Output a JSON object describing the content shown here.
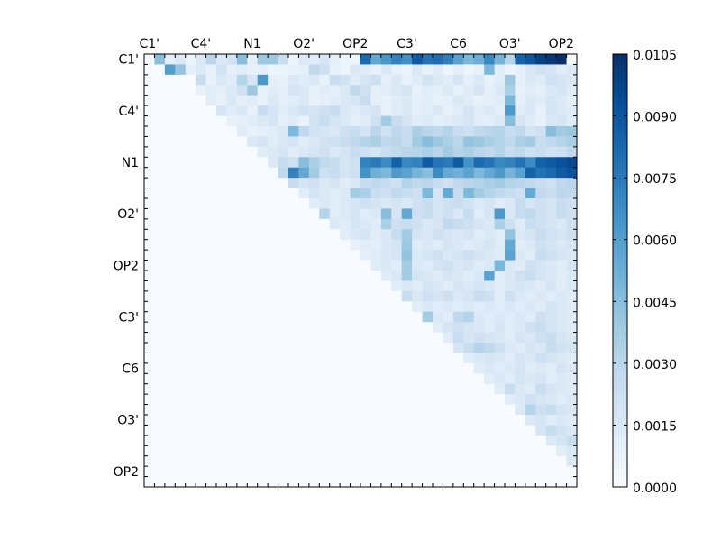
{
  "chart_data": {
    "type": "heatmap",
    "title": "",
    "xlabel": "",
    "ylabel": "",
    "x_tick_labels": [
      "C1'",
      "C4'",
      "N1",
      "O2'",
      "OP2",
      "C3'",
      "C6",
      "O3'",
      "OP2"
    ],
    "y_tick_labels": [
      "C1'",
      "C4'",
      "N1",
      "O2'",
      "OP2",
      "C3'",
      "C6",
      "O3'",
      "OP2"
    ],
    "x_tick_label_position": "top",
    "grid_size": 42,
    "lower_triangle_value": 0,
    "colorscale": "Blues",
    "colorbar": {
      "min": 0,
      "max": 0.0105,
      "tick_labels": [
        "0.0000",
        "0.0015",
        "0.0030",
        "0.0045",
        "0.0060",
        "0.0075",
        "0.0090",
        "0.0105"
      ]
    },
    "rows": [
      {
        "start": 1,
        "values": [
          0.0045,
          0.001,
          0.0015,
          0.0005,
          0.0015,
          0.003,
          0.0015,
          0.002,
          0.0045,
          0.001,
          0.004,
          0.004,
          0.0025,
          0.0005,
          0.0015,
          0.0012,
          0.0018,
          0.001,
          0.0006,
          0.0005,
          0.0082,
          0.0055,
          0.0063,
          0.0072,
          0.0066,
          0.0088,
          0.0078,
          0.008,
          0.0073,
          0.0058,
          0.0048,
          0.0052,
          0.007,
          0.005,
          0.0032,
          0.0084,
          0.0089,
          0.0098,
          0.0102,
          0.0105
        ]
      },
      {
        "start": 2,
        "values": [
          0.006,
          0.0042,
          0.001,
          0.0015,
          0.0008,
          0.002,
          0.001,
          0.0012,
          0.0008,
          0.001,
          0.0005,
          0.0005,
          0.0008,
          0.001,
          0.0028,
          0.0022,
          0.0008,
          0.0005,
          0.0015,
          0.0012,
          0.0008,
          0.0015,
          0.0008,
          0.0006,
          0.0015,
          0.0008,
          0.0012,
          0.0005,
          0.001,
          0.0005,
          0.0008,
          0.0048,
          0.0012,
          0.0005,
          0.001,
          0.0015,
          0.002,
          0.0018,
          0.0012,
          0.0015
        ]
      },
      {
        "start": 5,
        "values": [
          0.0025,
          0.0008,
          0.0015,
          0.0012,
          0.0032,
          0.0018,
          0.0062,
          0.001,
          0.0008,
          0.0015,
          0.0012,
          0.0015,
          0.0008,
          0.0025,
          0.002,
          0.0012,
          0.0018,
          0.0022,
          0.001,
          0.0015,
          0.0008,
          0.0012,
          0.002,
          0.0015,
          0.0012,
          0.0018,
          0.001,
          0.0015,
          0.0008,
          0.0012,
          0.004,
          0.001,
          0.0015,
          0.0012,
          0.0022,
          0.0018,
          0.0015,
          0.001
        ]
      },
      {
        "start": 5,
        "values": [
          0.0008,
          0.0012,
          0.001,
          0.0015,
          0.0022,
          0.004,
          0.0008,
          0.0012,
          0.001,
          0.0018,
          0.0015,
          0.0008,
          0.0012,
          0.001,
          0.0015,
          0.0028,
          0.0022,
          0.001,
          0.0012,
          0.0015,
          0.0018,
          0.0008,
          0.0012,
          0.001,
          0.0015,
          0.0008,
          0.0012,
          0.0018,
          0.001,
          0.0015,
          0.0035,
          0.0008,
          0.0012,
          0.001,
          0.0015,
          0.0018,
          0.0012
        ]
      },
      {
        "start": 6,
        "values": [
          0.0012,
          0.0008,
          0.0015,
          0.001,
          0.0012,
          0.0008,
          0.0015,
          0.001,
          0.0012,
          0.0015,
          0.0008,
          0.001,
          0.0012,
          0.0015,
          0.0018,
          0.0025,
          0.001,
          0.0008,
          0.0012,
          0.0015,
          0.001,
          0.0012,
          0.0008,
          0.001,
          0.0015,
          0.0012,
          0.0008,
          0.001,
          0.0012,
          0.0048,
          0.001,
          0.0015,
          0.0012,
          0.0018,
          0.0015,
          0.001
        ]
      },
      {
        "start": 7,
        "values": [
          0.0018,
          0.0012,
          0.0015,
          0.0008,
          0.0025,
          0.0018,
          0.0012,
          0.0015,
          0.002,
          0.0018,
          0.0022,
          0.0025,
          0.0015,
          0.0012,
          0.0015,
          0.0018,
          0.0008,
          0.0012,
          0.0015,
          0.001,
          0.0012,
          0.0015,
          0.0008,
          0.0012,
          0.0018,
          0.0012,
          0.0015,
          0.001,
          0.0062,
          0.0012,
          0.0015,
          0.0008,
          0.0018,
          0.0015,
          0.0012
        ]
      },
      {
        "start": 8,
        "values": [
          0.0008,
          0.001,
          0.0012,
          0.0015,
          0.0018,
          0.001,
          0.0012,
          0.0008,
          0.002,
          0.0025,
          0.0018,
          0.0015,
          0.001,
          0.0012,
          0.0022,
          0.0038,
          0.0025,
          0.0018,
          0.0012,
          0.0015,
          0.001,
          0.0012,
          0.0015,
          0.0018,
          0.0012,
          0.001,
          0.0015,
          0.0045,
          0.0018,
          0.0012,
          0.0008,
          0.0015,
          0.0018,
          0.0012
        ]
      },
      {
        "start": 9,
        "values": [
          0.0012,
          0.0008,
          0.001,
          0.0012,
          0.0015,
          0.0048,
          0.0028,
          0.002,
          0.0018,
          0.0015,
          0.0022,
          0.0025,
          0.0018,
          0.003,
          0.002,
          0.0028,
          0.0025,
          0.0035,
          0.003,
          0.0028,
          0.0032,
          0.0025,
          0.0022,
          0.0028,
          0.003,
          0.0032,
          0.0025,
          0.0028,
          0.0018,
          0.0022,
          0.0045,
          0.0038,
          0.004,
          0.0042,
          0.004,
          0.0038
        ]
      },
      {
        "start": 10,
        "values": [
          0.0015,
          0.0018,
          0.0012,
          0.0015,
          0.0018,
          0.0012,
          0.0015,
          0.002,
          0.0022,
          0.0025,
          0.0028,
          0.0032,
          0.0035,
          0.0028,
          0.003,
          0.0025,
          0.0038,
          0.0045,
          0.004,
          0.0035,
          0.003,
          0.0042,
          0.004,
          0.0035,
          0.0032,
          0.0028,
          0.0035,
          0.0038,
          0.0025,
          0.0028,
          0.0032,
          0.0035,
          0.0038,
          0.003
        ]
      },
      {
        "start": 11,
        "values": [
          0.0012,
          0.0015,
          0.0018,
          0.0012,
          0.0015,
          0.0018,
          0.0022,
          0.0015,
          0.0018,
          0.0025,
          0.0022,
          0.0018,
          0.0025,
          0.0028,
          0.003,
          0.0032,
          0.0035,
          0.003,
          0.0038,
          0.0032,
          0.0035,
          0.003,
          0.0028,
          0.0032,
          0.0025,
          0.0028,
          0.0022,
          0.0025,
          0.002,
          0.0022,
          0.0028,
          0.0025,
          0.0022
        ]
      },
      {
        "start": 12,
        "values": [
          0.0015,
          0.0025,
          0.0022,
          0.0045,
          0.0035,
          0.0028,
          0.0025,
          0.0018,
          0.0022,
          0.0072,
          0.0075,
          0.0068,
          0.0085,
          0.007,
          0.0072,
          0.0088,
          0.0078,
          0.0075,
          0.0088,
          0.0065,
          0.0082,
          0.0078,
          0.007,
          0.0072,
          0.0078,
          0.0068,
          0.0085,
          0.0088,
          0.0092,
          0.0095,
          0.0098
        ]
      },
      {
        "start": 13,
        "values": [
          0.0028,
          0.0072,
          0.0055,
          0.0038,
          0.0022,
          0.0025,
          0.0018,
          0.0022,
          0.0065,
          0.0052,
          0.0048,
          0.0062,
          0.0058,
          0.005,
          0.0045,
          0.0068,
          0.0055,
          0.0052,
          0.0058,
          0.0048,
          0.0055,
          0.0062,
          0.005,
          0.0058,
          0.0085,
          0.0078,
          0.0082,
          0.0088,
          0.0092,
          0.0098
        ]
      },
      {
        "start": 14,
        "values": [
          0.0025,
          0.0018,
          0.0022,
          0.0015,
          0.0018,
          0.0012,
          0.0015,
          0.0025,
          0.0028,
          0.0025,
          0.0022,
          0.0032,
          0.0028,
          0.003,
          0.0025,
          0.0022,
          0.0028,
          0.003,
          0.0032,
          0.0035,
          0.0038,
          0.0032,
          0.003,
          0.0028,
          0.0025,
          0.0022,
          0.0028,
          0.003
        ]
      },
      {
        "start": 15,
        "values": [
          0.0012,
          0.0018,
          0.0015,
          0.0012,
          0.0015,
          0.0038,
          0.0035,
          0.0025,
          0.0022,
          0.0028,
          0.0025,
          0.0022,
          0.0048,
          0.0018,
          0.0055,
          0.0025,
          0.0048,
          0.0038,
          0.0032,
          0.0028,
          0.0025,
          0.0022,
          0.0055,
          0.0028,
          0.0025,
          0.003,
          0.0028
        ]
      },
      {
        "start": 16,
        "values": [
          0.0012,
          0.0015,
          0.0012,
          0.0015,
          0.0018,
          0.0022,
          0.0018,
          0.0015,
          0.0018,
          0.0015,
          0.0022,
          0.0025,
          0.0018,
          0.0022,
          0.0025,
          0.002,
          0.0015,
          0.0018,
          0.0012,
          0.0015,
          0.0025,
          0.0018,
          0.0022,
          0.0018,
          0.0025,
          0.0022
        ]
      },
      {
        "start": 17,
        "values": [
          0.0032,
          0.0012,
          0.0015,
          0.0018,
          0.0012,
          0.0015,
          0.0045,
          0.0018,
          0.0055,
          0.0022,
          0.0025,
          0.0018,
          0.0022,
          0.0015,
          0.0025,
          0.0012,
          0.0018,
          0.0062,
          0.0015,
          0.0025,
          0.0028,
          0.0022,
          0.0018,
          0.0025,
          0.0022
        ]
      },
      {
        "start": 18,
        "values": [
          0.0015,
          0.0012,
          0.0018,
          0.0015,
          0.0012,
          0.0035,
          0.0022,
          0.0025,
          0.0022,
          0.0015,
          0.0018,
          0.0028,
          0.0025,
          0.0022,
          0.0018,
          0.0015,
          0.0035,
          0.0022,
          0.0012,
          0.0025,
          0.0022,
          0.0018,
          0.0015,
          0.0022
        ]
      },
      {
        "start": 19,
        "values": [
          0.0012,
          0.0015,
          0.0018,
          0.0012,
          0.0015,
          0.0025,
          0.0038,
          0.0018,
          0.0015,
          0.0022,
          0.0018,
          0.0015,
          0.0018,
          0.0012,
          0.0015,
          0.0012,
          0.0042,
          0.0015,
          0.0018,
          0.0025,
          0.002,
          0.0018,
          0.0022
        ]
      },
      {
        "start": 20,
        "values": [
          0.0008,
          0.0012,
          0.001,
          0.0015,
          0.0018,
          0.004,
          0.0012,
          0.0015,
          0.0012,
          0.0018,
          0.0015,
          0.0012,
          0.0015,
          0.0018,
          0.0012,
          0.0055,
          0.0012,
          0.0015,
          0.0022,
          0.0018,
          0.0015,
          0.0018
        ]
      },
      {
        "start": 21,
        "values": [
          0.001,
          0.0012,
          0.0015,
          0.0018,
          0.0042,
          0.0015,
          0.0018,
          0.0022,
          0.0015,
          0.0018,
          0.0022,
          0.0018,
          0.0015,
          0.0012,
          0.0058,
          0.0015,
          0.0012,
          0.0025,
          0.0022,
          0.0018,
          0.0015
        ]
      },
      {
        "start": 22,
        "values": [
          0.0012,
          0.0015,
          0.0012,
          0.0038,
          0.0015,
          0.0012,
          0.0018,
          0.0022,
          0.0015,
          0.0018,
          0.0012,
          0.0015,
          0.0048,
          0.0015,
          0.0012,
          0.0022,
          0.0018,
          0.0015,
          0.0012,
          0.0018
        ]
      },
      {
        "start": 23,
        "values": [
          0.0012,
          0.0015,
          0.0038,
          0.0018,
          0.0015,
          0.0012,
          0.0018,
          0.0015,
          0.0012,
          0.0015,
          0.0058,
          0.0012,
          0.0015,
          0.0022,
          0.0025,
          0.0018,
          0.0015,
          0.0012,
          0.0015
        ]
      },
      {
        "start": 24,
        "values": [
          0.0012,
          0.0015,
          0.0012,
          0.0018,
          0.0015,
          0.0012,
          0.0018,
          0.0015,
          0.0018,
          0.0015,
          0.0012,
          0.0015,
          0.0018,
          0.0015,
          0.0012,
          0.0018,
          0.0012,
          0.0015
        ]
      },
      {
        "start": 25,
        "values": [
          0.0025,
          0.0015,
          0.0022,
          0.0018,
          0.0022,
          0.0015,
          0.0018,
          0.0025,
          0.0022,
          0.0012,
          0.0022,
          0.0015,
          0.0012,
          0.0015,
          0.0012,
          0.0015,
          0.0012
        ]
      },
      {
        "start": 26,
        "values": [
          0.0012,
          0.0015,
          0.0012,
          0.0015,
          0.0012,
          0.0015,
          0.0012,
          0.0015,
          0.0012,
          0.0015,
          0.0012,
          0.0015,
          0.0012,
          0.0018,
          0.0015,
          0.0012
        ]
      },
      {
        "start": 27,
        "values": [
          0.0038,
          0.0015,
          0.0012,
          0.0028,
          0.0032,
          0.0015,
          0.0012,
          0.0015,
          0.0012,
          0.0015,
          0.0012,
          0.0022,
          0.0018,
          0.0015,
          0.0012
        ]
      },
      {
        "start": 28,
        "values": [
          0.0012,
          0.0018,
          0.0022,
          0.0018,
          0.0015,
          0.0012,
          0.0018,
          0.0012,
          0.0015,
          0.0022,
          0.0025,
          0.0018,
          0.0015,
          0.0012
        ]
      },
      {
        "start": 29,
        "values": [
          0.0012,
          0.0025,
          0.0018,
          0.0022,
          0.0018,
          0.0015,
          0.0012,
          0.0018,
          0.0015,
          0.0022,
          0.0025,
          0.0018,
          0.0015
        ]
      },
      {
        "start": 30,
        "values": [
          0.0018,
          0.0025,
          0.0032,
          0.0028,
          0.0022,
          0.0015,
          0.0012,
          0.0018,
          0.0015,
          0.0025,
          0.002,
          0.0018
        ]
      },
      {
        "start": 31,
        "values": [
          0.0012,
          0.0015,
          0.0018,
          0.0015,
          0.0012,
          0.0018,
          0.0015,
          0.0022,
          0.0018,
          0.0015,
          0.0012
        ]
      },
      {
        "start": 32,
        "values": [
          0.0012,
          0.0015,
          0.0012,
          0.0015,
          0.0018,
          0.0012,
          0.0015,
          0.0012,
          0.0018,
          0.0015
        ]
      },
      {
        "start": 33,
        "values": [
          0.0012,
          0.0015,
          0.0012,
          0.0018,
          0.0015,
          0.0018,
          0.0012,
          0.0015,
          0.0012
        ]
      },
      {
        "start": 34,
        "values": [
          0.0012,
          0.0025,
          0.0015,
          0.0012,
          0.0025,
          0.0018,
          0.0015,
          0.0012
        ]
      },
      {
        "start": 35,
        "values": [
          0.0012,
          0.0015,
          0.0022,
          0.0018,
          0.0015,
          0.0012,
          0.0015
        ]
      },
      {
        "start": 36,
        "values": [
          0.0015,
          0.0032,
          0.0022,
          0.0025,
          0.0018,
          0.0015
        ]
      },
      {
        "start": 37,
        "values": [
          0.0015,
          0.0018,
          0.0012,
          0.0015,
          0.0012
        ]
      },
      {
        "start": 38,
        "values": [
          0.0018,
          0.0025,
          0.002,
          0.0015
        ]
      },
      {
        "start": 39,
        "values": [
          0.0015,
          0.0018,
          0.0025
        ]
      },
      {
        "start": 40,
        "values": [
          0.0012,
          0.0015
        ]
      },
      {
        "start": 41,
        "values": [
          0.0015
        ]
      }
    ]
  }
}
